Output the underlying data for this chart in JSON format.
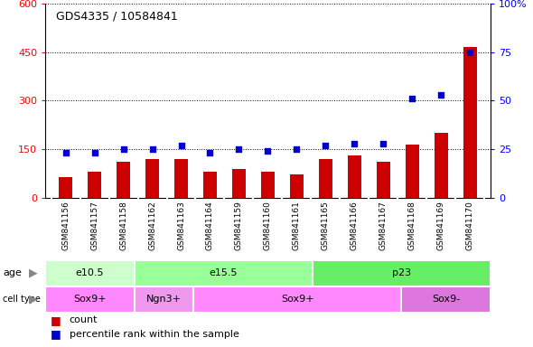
{
  "title": "GDS4335 / 10584841",
  "samples": [
    "GSM841156",
    "GSM841157",
    "GSM841158",
    "GSM841162",
    "GSM841163",
    "GSM841164",
    "GSM841159",
    "GSM841160",
    "GSM841161",
    "GSM841165",
    "GSM841166",
    "GSM841167",
    "GSM841168",
    "GSM841169",
    "GSM841170"
  ],
  "counts": [
    65,
    80,
    110,
    120,
    120,
    80,
    90,
    80,
    72,
    120,
    130,
    110,
    165,
    200,
    465
  ],
  "percentile_ranks": [
    23,
    23,
    25,
    25,
    27,
    23,
    25,
    24,
    25,
    27,
    28,
    28,
    51,
    53,
    75
  ],
  "ylim_left": [
    0,
    600
  ],
  "ylim_right": [
    0,
    100
  ],
  "yticks_left": [
    0,
    150,
    300,
    450,
    600
  ],
  "yticks_right": [
    0,
    25,
    50,
    75,
    100
  ],
  "bar_color": "#cc0000",
  "dot_color": "#0000cc",
  "plot_bg": "#ffffff",
  "xtick_bg": "#d0d0d0",
  "age_groups": [
    {
      "label": "e10.5",
      "start": 0,
      "end": 3,
      "color": "#ccffcc"
    },
    {
      "label": "e15.5",
      "start": 3,
      "end": 9,
      "color": "#99ff99"
    },
    {
      "label": "p23",
      "start": 9,
      "end": 15,
      "color": "#66ee66"
    }
  ],
  "cell_type_groups": [
    {
      "label": "Sox9+",
      "start": 0,
      "end": 3,
      "color": "#ff88ff"
    },
    {
      "label": "Ngn3+",
      "start": 3,
      "end": 5,
      "color": "#ee99ee"
    },
    {
      "label": "Sox9+",
      "start": 5,
      "end": 12,
      "color": "#ff88ff"
    },
    {
      "label": "Sox9-",
      "start": 12,
      "end": 15,
      "color": "#dd77dd"
    }
  ],
  "legend_count_label": "count",
  "legend_pct_label": "percentile rank within the sample",
  "grid_color": "#000000",
  "n_samples": 15
}
